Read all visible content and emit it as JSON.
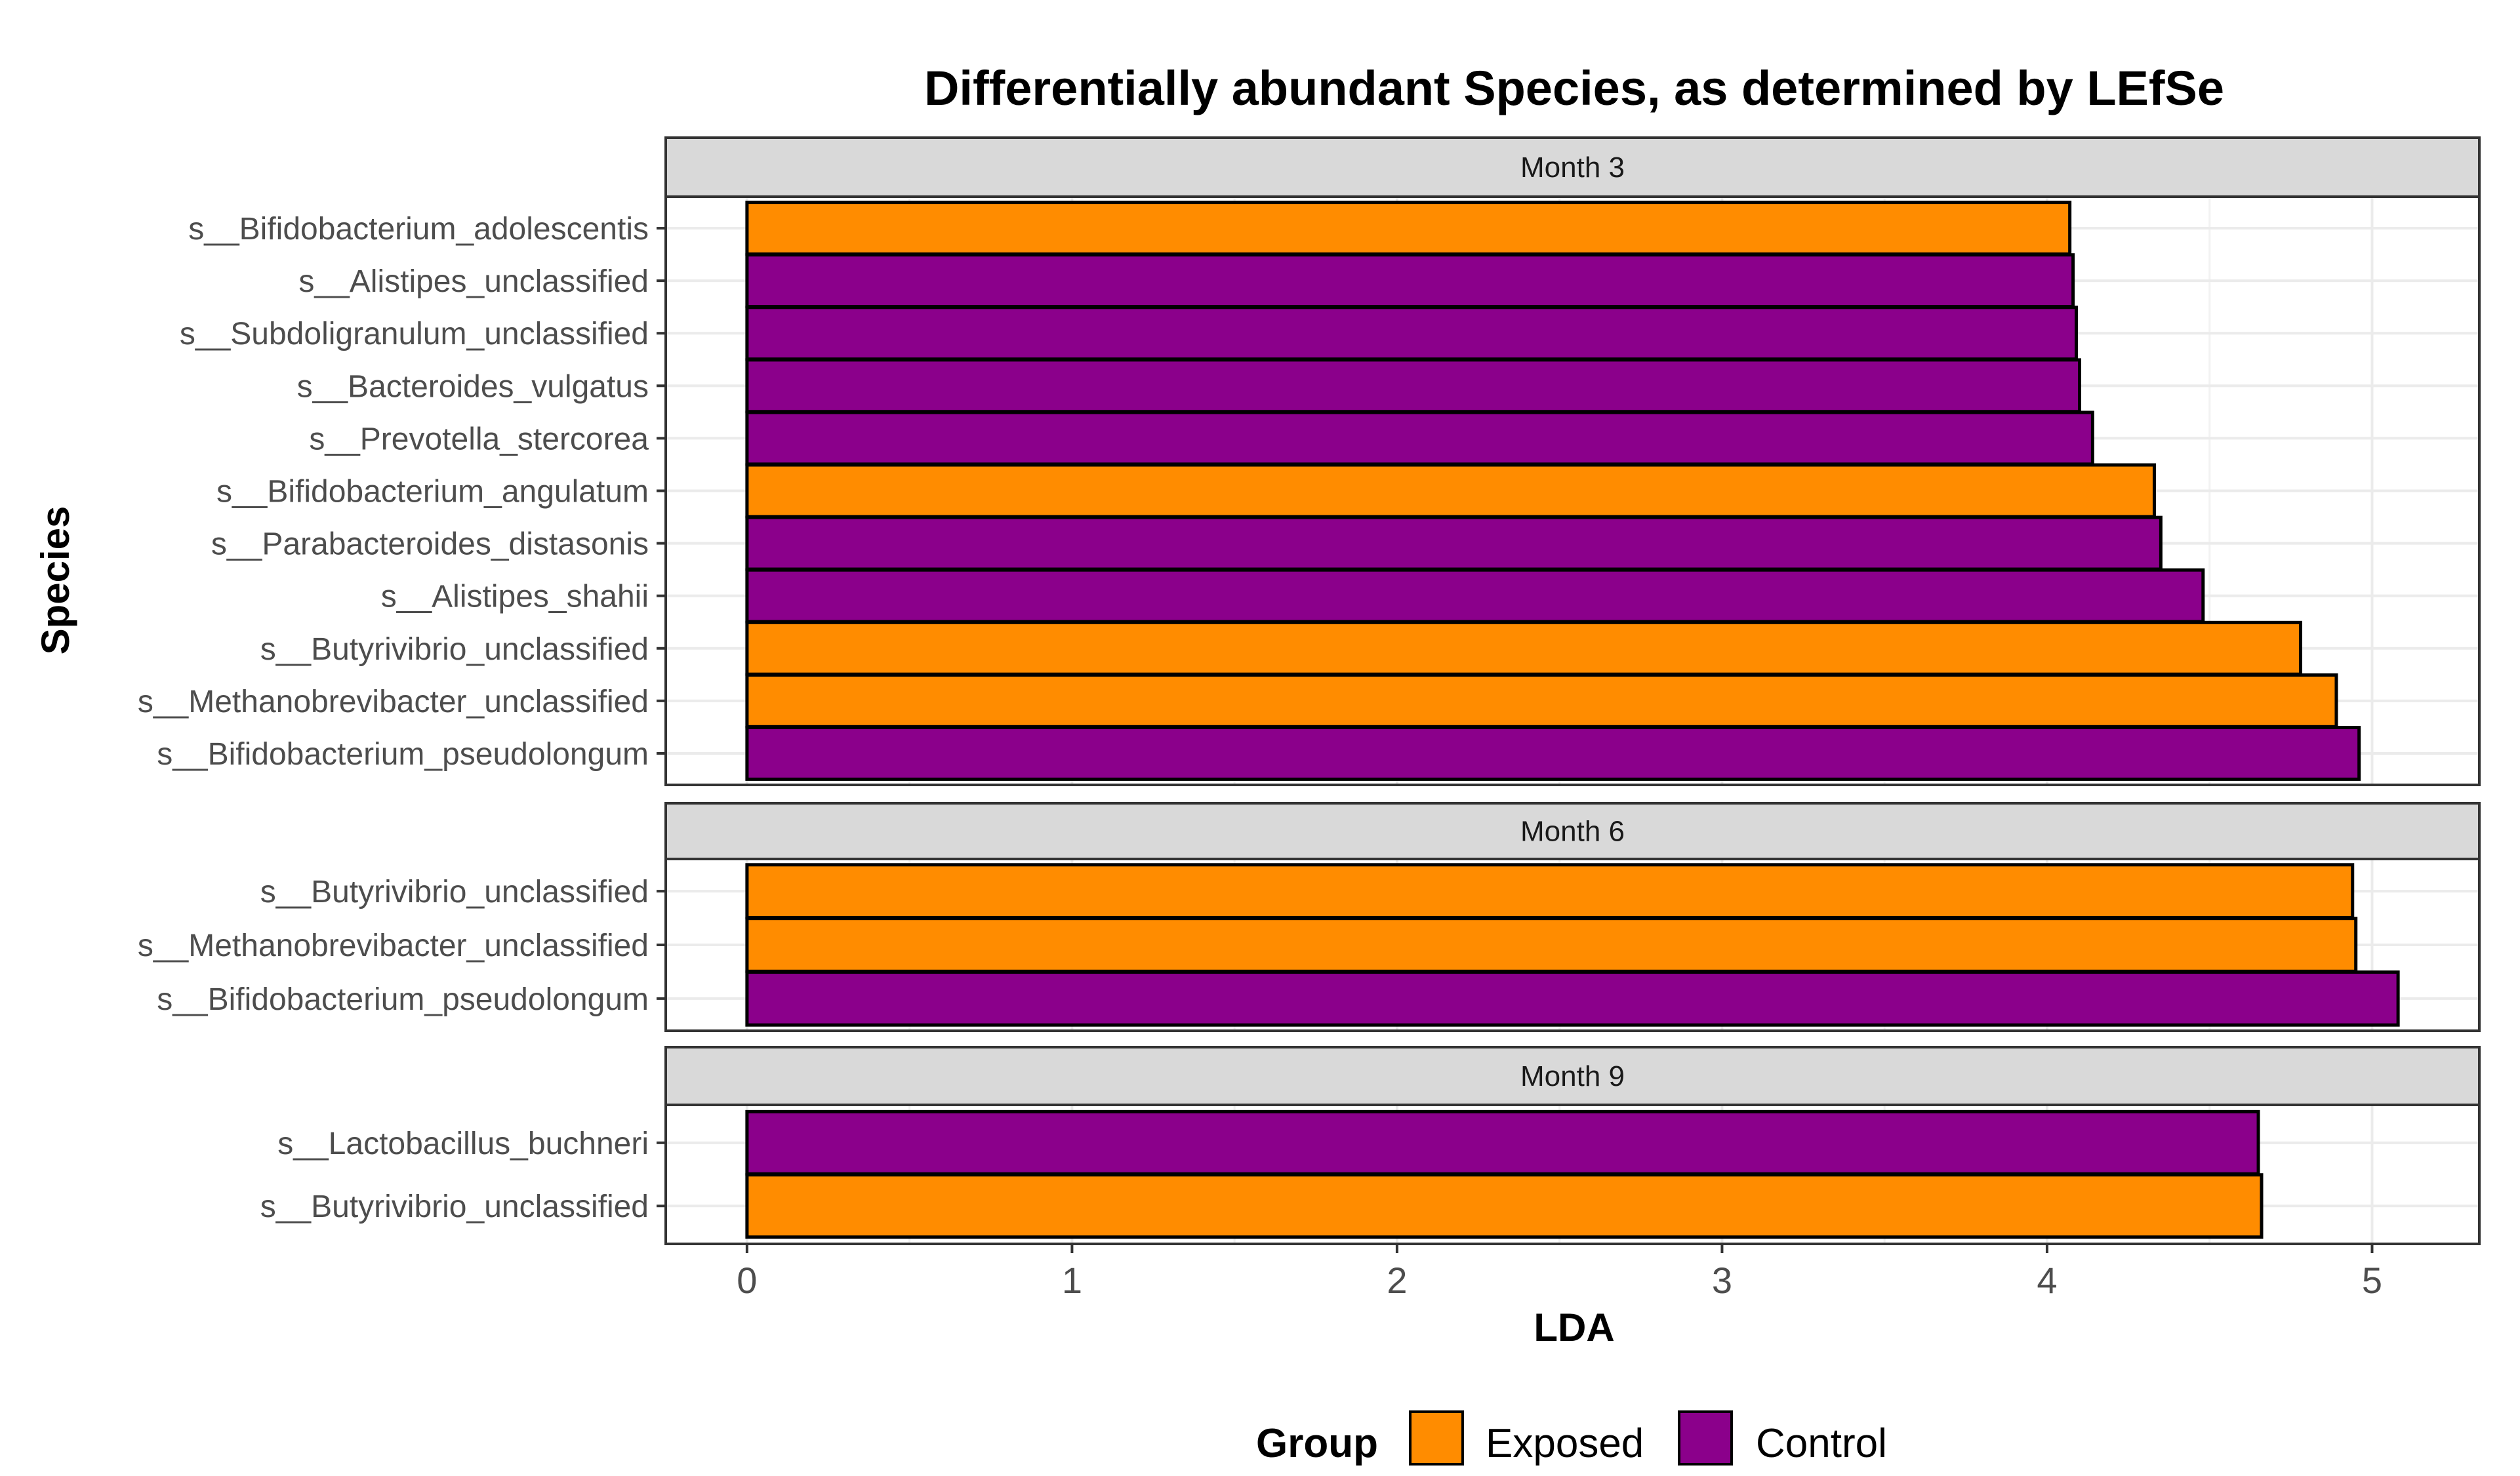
{
  "chart_data": {
    "type": "bar",
    "orientation": "horizontal",
    "title": "Differentially abundant Species, as determined by LEfSe",
    "xlabel": "LDA",
    "ylabel": "Species",
    "xlim": [
      -0.25,
      5.33
    ],
    "xticks": [
      0,
      1,
      2,
      3,
      4,
      5
    ],
    "grid": true,
    "legend": {
      "title": "Group",
      "position": "bottom",
      "entries": [
        {
          "name": "Exposed",
          "color": "#FF8C00"
        },
        {
          "name": "Control",
          "color": "#8B008B"
        }
      ]
    },
    "facets": [
      {
        "label": "Month 3",
        "bars": [
          {
            "species": "s__Bifidobacterium_adolescentis",
            "lda": 4.07,
            "group": "Exposed"
          },
          {
            "species": "s__Alistipes_unclassified",
            "lda": 4.08,
            "group": "Control"
          },
          {
            "species": "s__Subdoligranulum_unclassified",
            "lda": 4.09,
            "group": "Control"
          },
          {
            "species": "s__Bacteroides_vulgatus",
            "lda": 4.1,
            "group": "Control"
          },
          {
            "species": "s__Prevotella_stercorea",
            "lda": 4.14,
            "group": "Control"
          },
          {
            "species": "s__Bifidobacterium_angulatum",
            "lda": 4.33,
            "group": "Exposed"
          },
          {
            "species": "s__Parabacteroides_distasonis",
            "lda": 4.35,
            "group": "Control"
          },
          {
            "species": "s__Alistipes_shahii",
            "lda": 4.48,
            "group": "Control"
          },
          {
            "species": "s__Butyrivibrio_unclassified",
            "lda": 4.78,
            "group": "Exposed"
          },
          {
            "species": "s__Methanobrevibacter_unclassified",
            "lda": 4.89,
            "group": "Exposed"
          },
          {
            "species": "s__Bifidobacterium_pseudolongum",
            "lda": 4.96,
            "group": "Control"
          }
        ]
      },
      {
        "label": "Month 6",
        "bars": [
          {
            "species": "s__Butyrivibrio_unclassified",
            "lda": 4.94,
            "group": "Exposed"
          },
          {
            "species": "s__Methanobrevibacter_unclassified",
            "lda": 4.95,
            "group": "Exposed"
          },
          {
            "species": "s__Bifidobacterium_pseudolongum",
            "lda": 5.08,
            "group": "Control"
          }
        ]
      },
      {
        "label": "Month 9",
        "bars": [
          {
            "species": "s__Lactobacillus_buchneri",
            "lda": 4.65,
            "group": "Control"
          },
          {
            "species": "s__Butyrivibrio_unclassified",
            "lda": 4.66,
            "group": "Exposed"
          }
        ]
      }
    ]
  }
}
